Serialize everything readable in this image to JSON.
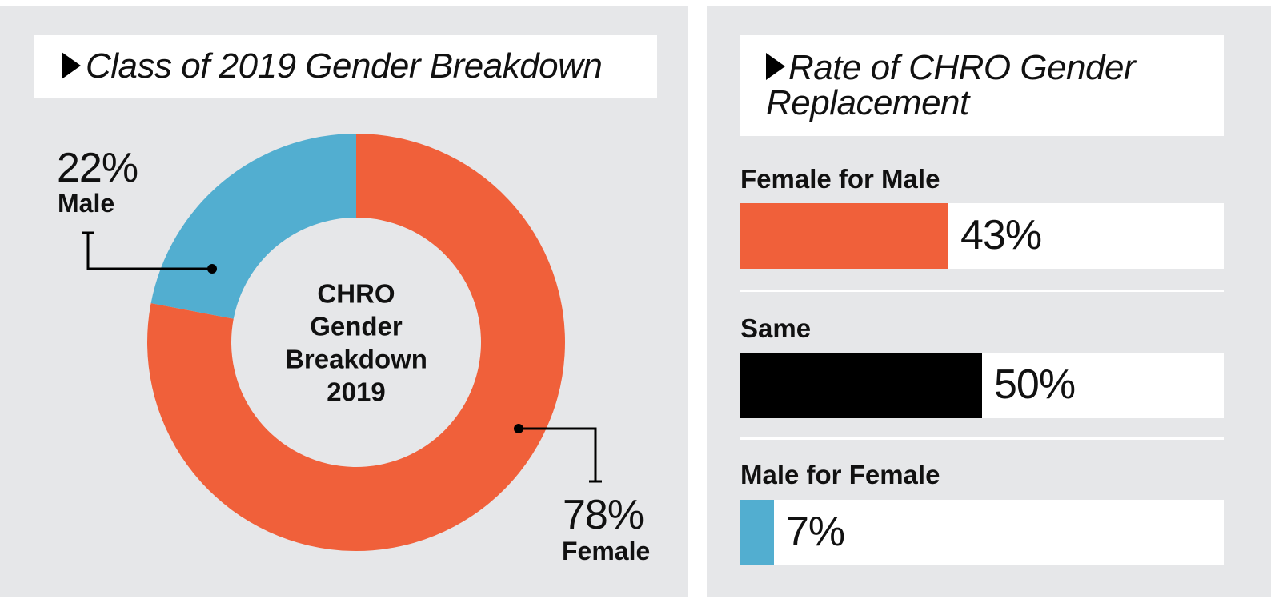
{
  "left_panel": {
    "title": "Class of 2019 Gender Breakdown"
  },
  "right_panel": {
    "title_line1": "Rate of CHRO Gender",
    "title_line2": "Replacement"
  },
  "chart_data": [
    {
      "type": "pie",
      "title": "Class of 2019 Gender Breakdown",
      "center_label": [
        "CHRO",
        "Gender",
        "Breakdown",
        "2019"
      ],
      "slices": [
        {
          "label": "Male",
          "value": 22,
          "display": "22%",
          "color": "#52aed0"
        },
        {
          "label": "Female",
          "value": 78,
          "display": "78%",
          "color": "#f0603a"
        }
      ]
    },
    {
      "type": "bar",
      "title": "Rate of CHRO Gender Replacement",
      "categories": [
        "Female for Male",
        "Same",
        "Male for Female"
      ],
      "values": [
        43,
        50,
        7
      ],
      "display": [
        "43%",
        "50%",
        "7%"
      ],
      "colors": [
        "#f0603a",
        "#000000",
        "#52aed0"
      ],
      "xlim": [
        0,
        100
      ]
    }
  ]
}
